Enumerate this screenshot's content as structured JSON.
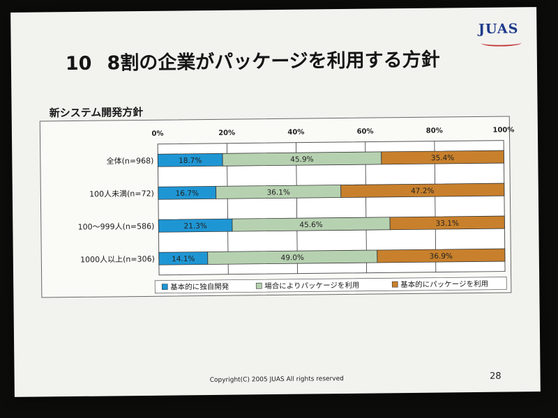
{
  "header": {
    "logo": "JUAS",
    "title_number": "10",
    "title_text": "8割の企業がパッケージを利用する方針"
  },
  "chart_heading": "新システム開発方針",
  "footer": {
    "copyright": "Copyright(C) 2005 JUAS All rights reserved",
    "page_number": "28"
  },
  "colors": {
    "blue": "#1f96d4",
    "green": "#b6d1b0",
    "orange": "#c8802c"
  },
  "chart_data": {
    "type": "bar",
    "orientation": "horizontal",
    "stacked": true,
    "percent": true,
    "title": "新システム開発方針",
    "x_ticks": [
      "0%",
      "20%",
      "40%",
      "60%",
      "80%",
      "100%"
    ],
    "xlim": [
      0,
      100
    ],
    "grid": true,
    "legend_position": "bottom",
    "categories": [
      "全体(n=968)",
      "100人未満(n=72)",
      "100〜999人(n=586)",
      "1000人以上(n=306)"
    ],
    "series": [
      {
        "name": "基本的に独自開発",
        "color": "#1f96d4",
        "values": [
          18.7,
          16.7,
          21.3,
          14.1
        ],
        "labels": [
          "18.7%",
          "16.7%",
          "21.3%",
          "14.1%"
        ]
      },
      {
        "name": "場合によりパッケージを利用",
        "color": "#b6d1b0",
        "values": [
          45.9,
          36.1,
          45.6,
          49.0
        ],
        "labels": [
          "45.9%",
          "36.1%",
          "45.6%",
          "49.0%"
        ]
      },
      {
        "name": "基本的にパッケージを利用",
        "color": "#c8802c",
        "values": [
          35.4,
          47.2,
          33.1,
          36.9
        ],
        "labels": [
          "35.4%",
          "47.2%",
          "33.1%",
          "36.9%"
        ]
      }
    ]
  }
}
